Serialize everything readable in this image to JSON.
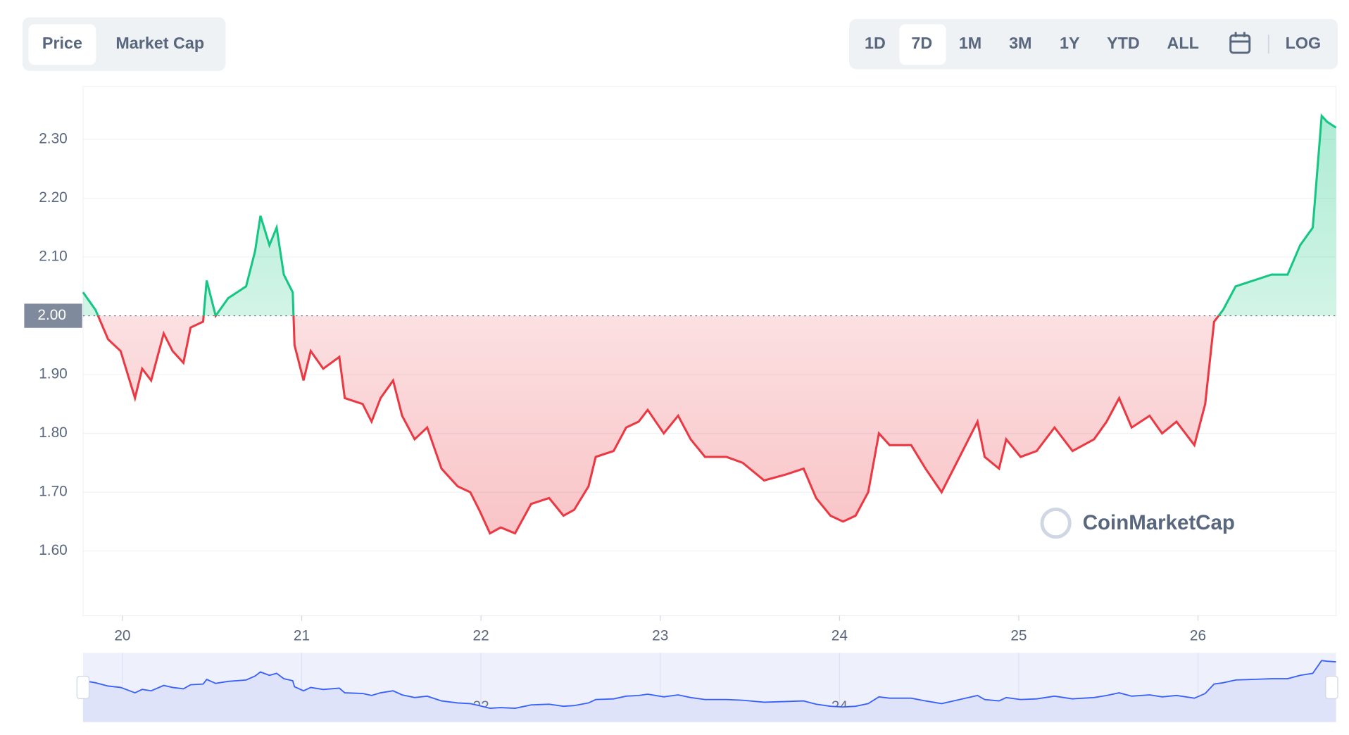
{
  "tabs": [
    "Price",
    "Market Cap"
  ],
  "ranges": [
    "1D",
    "7D",
    "1M",
    "3M",
    "1Y",
    "YTD",
    "ALL"
  ],
  "log_label": "LOG",
  "watermark": "CoinMarketCap",
  "chart_data": {
    "type": "line",
    "x": [
      19.78,
      19.85,
      19.92,
      19.99,
      20.07,
      20.11,
      20.16,
      20.23,
      20.28,
      20.34,
      20.38,
      20.45,
      20.47,
      20.52,
      20.59,
      20.69,
      20.74,
      20.77,
      20.82,
      20.86,
      20.9,
      20.95,
      20.96,
      21.01,
      21.05,
      21.12,
      21.21,
      21.24,
      21.34,
      21.39,
      21.44,
      21.51,
      21.56,
      21.63,
      21.7,
      21.78,
      21.87,
      21.94,
      21.99,
      22.05,
      22.11,
      22.19,
      22.28,
      22.38,
      22.46,
      22.52,
      22.6,
      22.64,
      22.74,
      22.81,
      22.88,
      22.93,
      23.02,
      23.1,
      23.17,
      23.25,
      23.37,
      23.46,
      23.58,
      23.7,
      23.8,
      23.87,
      23.95,
      24.02,
      24.09,
      24.16,
      24.22,
      24.28,
      24.4,
      24.48,
      24.57,
      24.67,
      24.77,
      24.81,
      24.89,
      24.93,
      25.01,
      25.1,
      25.2,
      25.3,
      25.42,
      25.49,
      25.56,
      25.63,
      25.73,
      25.8,
      25.88,
      25.98,
      26.04,
      26.09,
      26.14,
      26.21,
      26.31,
      26.41,
      26.5,
      26.57,
      26.64,
      26.69,
      26.72,
      26.77
    ],
    "values": [
      2.04,
      2.01,
      1.96,
      1.94,
      1.86,
      1.91,
      1.89,
      1.97,
      1.94,
      1.92,
      1.98,
      1.99,
      2.06,
      2.0,
      2.03,
      2.05,
      2.11,
      2.17,
      2.12,
      2.15,
      2.07,
      2.04,
      1.95,
      1.89,
      1.94,
      1.91,
      1.93,
      1.86,
      1.85,
      1.82,
      1.86,
      1.89,
      1.83,
      1.79,
      1.81,
      1.74,
      1.71,
      1.7,
      1.67,
      1.63,
      1.64,
      1.63,
      1.68,
      1.69,
      1.66,
      1.67,
      1.71,
      1.76,
      1.77,
      1.81,
      1.82,
      1.84,
      1.8,
      1.83,
      1.79,
      1.76,
      1.76,
      1.75,
      1.72,
      1.73,
      1.74,
      1.69,
      1.66,
      1.65,
      1.66,
      1.7,
      1.8,
      1.78,
      1.78,
      1.74,
      1.7,
      1.76,
      1.82,
      1.76,
      1.74,
      1.79,
      1.76,
      1.77,
      1.81,
      1.77,
      1.79,
      1.82,
      1.86,
      1.81,
      1.83,
      1.8,
      1.82,
      1.78,
      1.85,
      1.99,
      2.01,
      2.05,
      2.06,
      2.07,
      2.07,
      2.12,
      2.15,
      2.34,
      2.33,
      2.32
    ],
    "baseline": {
      "value": 2.0,
      "label": "2.00"
    },
    "xlim": [
      19.78,
      26.77
    ],
    "xticks": [
      20,
      21,
      22,
      23,
      24,
      25,
      26
    ],
    "ylim": [
      1.49,
      2.39
    ],
    "yticks": [
      {
        "value": 1.6,
        "label": "1.60"
      },
      {
        "value": 1.7,
        "label": "1.70"
      },
      {
        "value": 1.8,
        "label": "1.80"
      },
      {
        "value": 1.9,
        "label": "1.90"
      },
      {
        "value": 2.1,
        "label": "2.10"
      },
      {
        "value": 2.2,
        "label": "2.20"
      },
      {
        "value": 2.3,
        "label": "2.30"
      }
    ],
    "up_color": "#16c784",
    "down_color": "#ea3943",
    "grid": true
  }
}
